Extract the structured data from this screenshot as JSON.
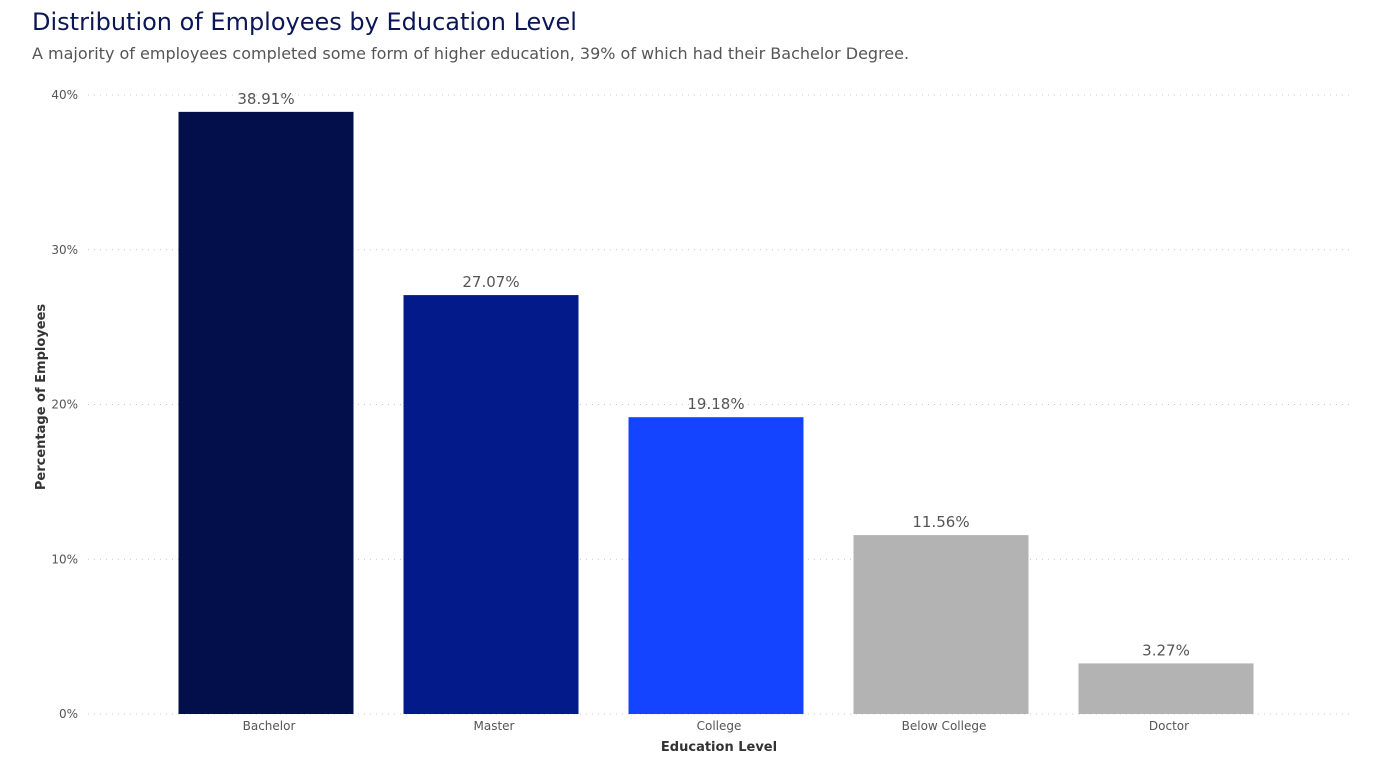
{
  "header": {
    "title": "Distribution of Employees by Education Level",
    "subtitle": "A majority of employees completed some form of higher education, 39% of which had their Bachelor Degree."
  },
  "chart_data": {
    "type": "bar",
    "title": "Distribution of Employees by Education Level",
    "subtitle": "A majority of employees completed some form of higher education, 39% of which had their Bachelor Degree.",
    "xlabel": "Education Level",
    "ylabel": "Percentage of Employees",
    "categories": [
      "Bachelor",
      "Master",
      "College",
      "Below College",
      "Doctor"
    ],
    "values": [
      38.91,
      27.07,
      19.18,
      11.56,
      3.27
    ],
    "data_labels": [
      "38.91%",
      "27.07%",
      "19.18%",
      "11.56%",
      "3.27%"
    ],
    "colors": [
      "#020f4a",
      "#031b8a",
      "#1444ff",
      "#b3b3b3",
      "#b3b3b3"
    ],
    "ylim": [
      0,
      40
    ],
    "yticks": [
      0,
      10,
      20,
      30,
      40
    ],
    "ytick_labels": [
      "0%",
      "10%",
      "20%",
      "30%",
      "40%"
    ],
    "grid": true,
    "legend": "none"
  }
}
